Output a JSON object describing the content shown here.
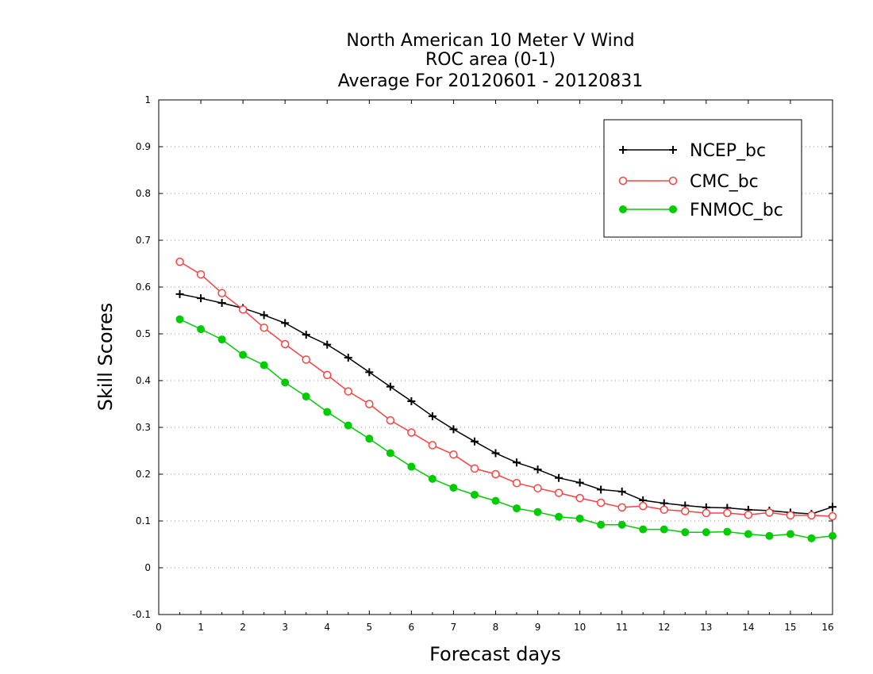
{
  "chart_data": {
    "type": "line",
    "title_lines": [
      "North American 10 Meter V Wind",
      "ROC area (0-1)",
      "Average For 20120601 - 20120831"
    ],
    "xlabel": "Forecast days",
    "ylabel": "Skill Scores",
    "xlim": [
      0,
      16
    ],
    "ylim": [
      -0.1,
      1
    ],
    "x_ticks": [
      0,
      1,
      2,
      3,
      4,
      5,
      6,
      7,
      8,
      9,
      10,
      11,
      12,
      13,
      14,
      15,
      16
    ],
    "y_ticks": [
      -0.1,
      0,
      0.1,
      0.2,
      0.3,
      0.4,
      0.5,
      0.6,
      0.7,
      0.8,
      0.9,
      1
    ],
    "y_tick_labels": [
      "-0.1",
      "0",
      "0.1",
      "0.2",
      "0.3",
      "0.4",
      "0.5",
      "0.6",
      "0.7",
      "0.8",
      "0.9",
      "1"
    ],
    "grid": "horizontal-dotted",
    "legend_position": "top-right",
    "x": [
      0.5,
      1,
      1.5,
      2,
      2.5,
      3,
      3.5,
      4,
      4.5,
      5,
      5.5,
      6,
      6.5,
      7,
      7.5,
      8,
      8.5,
      9,
      9.5,
      10,
      10.5,
      11,
      11.5,
      12,
      12.5,
      13,
      13.5,
      14,
      14.5,
      15,
      15.5,
      16
    ],
    "series": [
      {
        "name": "NCEP_bc",
        "color": "#000000",
        "marker": "plus",
        "values": [
          0.585,
          0.576,
          0.566,
          0.555,
          0.54,
          0.523,
          0.498,
          0.477,
          0.449,
          0.418,
          0.387,
          0.356,
          0.324,
          0.296,
          0.27,
          0.245,
          0.225,
          0.21,
          0.192,
          0.182,
          0.167,
          0.163,
          0.144,
          0.138,
          0.133,
          0.129,
          0.128,
          0.124,
          0.122,
          0.118,
          0.115,
          0.13
        ]
      },
      {
        "name": "CMC_bc",
        "color": "#ff4040",
        "marker": "open-circle",
        "values": [
          0.654,
          0.627,
          0.587,
          0.552,
          0.513,
          0.478,
          0.445,
          0.412,
          0.377,
          0.35,
          0.315,
          0.289,
          0.262,
          0.242,
          0.212,
          0.2,
          0.181,
          0.17,
          0.16,
          0.149,
          0.139,
          0.129,
          0.132,
          0.124,
          0.121,
          0.117,
          0.117,
          0.113,
          0.118,
          0.112,
          0.112,
          0.11
        ]
      },
      {
        "name": "FNMOC_bc",
        "color": "#00cc00",
        "marker": "filled-circle",
        "values": [
          0.531,
          0.51,
          0.488,
          0.455,
          0.433,
          0.396,
          0.366,
          0.333,
          0.304,
          0.276,
          0.245,
          0.216,
          0.19,
          0.171,
          0.156,
          0.143,
          0.127,
          0.119,
          0.109,
          0.105,
          0.092,
          0.092,
          0.082,
          0.082,
          0.076,
          0.076,
          0.077,
          0.072,
          0.068,
          0.072,
          0.063,
          0.068
        ]
      }
    ]
  }
}
